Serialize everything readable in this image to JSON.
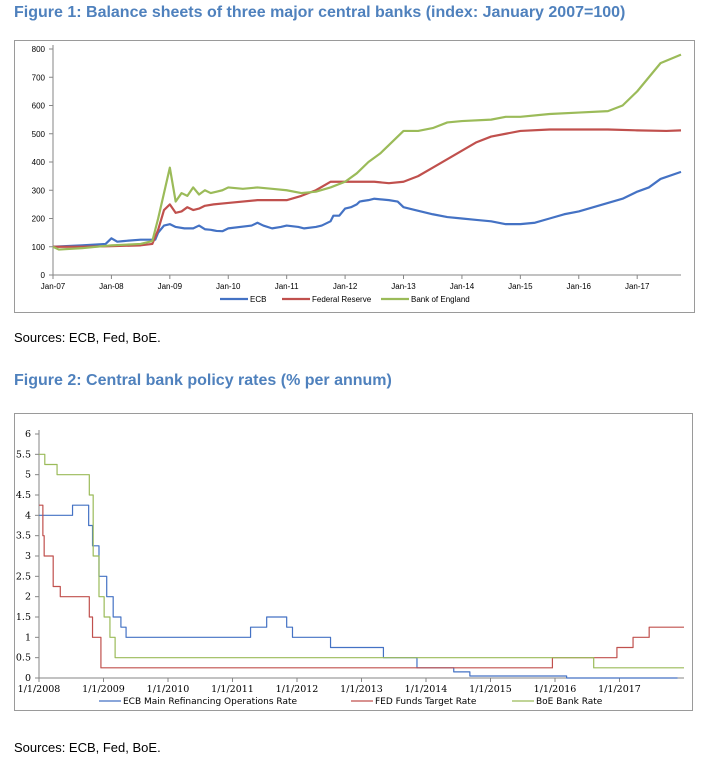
{
  "figure1": {
    "title": "Figure 1: Balance sheets of three major central banks (index: January 2007=100)",
    "sources": "Sources: ECB, Fed, BoE."
  },
  "figure2": {
    "title": "Figure 2: Central bank policy rates (% per annum)",
    "sources": "Sources: ECB, Fed, BoE."
  },
  "chart_data": [
    {
      "type": "line",
      "title": "Figure 1: Balance sheets of three major central banks (index: January 2007=100)",
      "xlabel": "",
      "ylabel": "",
      "xlim": [
        2007.0,
        2017.75
      ],
      "ylim": [
        0,
        800
      ],
      "yticks": [
        0,
        100,
        200,
        300,
        400,
        500,
        600,
        700,
        800
      ],
      "xtick_labels": [
        "Jan-07",
        "Jan-08",
        "Jan-09",
        "Jan-10",
        "Jan-11",
        "Jan-12",
        "Jan-13",
        "Jan-14",
        "Jan-15",
        "Jan-16",
        "Jan-17"
      ],
      "grid": false,
      "legend_position": "bottom",
      "series": [
        {
          "name": "ECB",
          "color": "#4472c4",
          "x": [
            2007.0,
            2007.5,
            2007.9,
            2008.0,
            2008.1,
            2008.2,
            2008.5,
            2008.75,
            2008.8,
            2008.9,
            2009.0,
            2009.1,
            2009.25,
            2009.4,
            2009.5,
            2009.6,
            2009.7,
            2009.75,
            2009.8,
            2009.9,
            2010.0,
            2010.4,
            2010.5,
            2010.6,
            2010.75,
            2010.9,
            2011.0,
            2011.2,
            2011.3,
            2011.5,
            2011.6,
            2011.75,
            2011.8,
            2011.9,
            2012.0,
            2012.1,
            2012.2,
            2012.25,
            2012.3,
            2012.4,
            2012.5,
            2012.75,
            2012.9,
            2013.0,
            2013.2,
            2013.5,
            2013.75,
            2014.0,
            2014.25,
            2014.5,
            2014.75,
            2015.0,
            2015.25,
            2015.5,
            2015.75,
            2016.0,
            2016.25,
            2016.5,
            2016.75,
            2017.0,
            2017.2,
            2017.4,
            2017.75
          ],
          "y": [
            100,
            105,
            110,
            130,
            118,
            120,
            125,
            125,
            150,
            175,
            180,
            170,
            165,
            165,
            175,
            162,
            160,
            158,
            156,
            155,
            165,
            175,
            185,
            175,
            165,
            170,
            175,
            170,
            165,
            170,
            175,
            190,
            210,
            210,
            235,
            240,
            250,
            260,
            262,
            265,
            270,
            265,
            260,
            240,
            230,
            215,
            205,
            200,
            195,
            190,
            180,
            180,
            185,
            200,
            215,
            225,
            240,
            255,
            270,
            295,
            310,
            340,
            365
          ]
        },
        {
          "name": "Federal Reserve",
          "color": "#c0504d",
          "x": [
            2007.0,
            2007.5,
            2008.0,
            2008.5,
            2008.7,
            2008.8,
            2008.9,
            2009.0,
            2009.1,
            2009.2,
            2009.3,
            2009.4,
            2009.5,
            2009.6,
            2009.75,
            2010.0,
            2010.5,
            2011.0,
            2011.25,
            2011.5,
            2011.75,
            2012.0,
            2012.25,
            2012.5,
            2012.75,
            2013.0,
            2013.25,
            2013.5,
            2013.75,
            2014.0,
            2014.25,
            2014.5,
            2014.75,
            2015.0,
            2015.5,
            2016.0,
            2016.5,
            2017.0,
            2017.5,
            2017.75
          ],
          "y": [
            100,
            100,
            102,
            105,
            110,
            160,
            230,
            250,
            220,
            225,
            240,
            230,
            235,
            245,
            250,
            255,
            265,
            265,
            280,
            300,
            330,
            330,
            330,
            330,
            325,
            330,
            350,
            380,
            410,
            440,
            470,
            490,
            500,
            510,
            515,
            515,
            515,
            512,
            510,
            512
          ]
        },
        {
          "name": "Bank of England",
          "color": "#9bbb59",
          "x": [
            2007.0,
            2007.1,
            2007.5,
            2008.0,
            2008.5,
            2008.7,
            2008.8,
            2008.9,
            2009.0,
            2009.1,
            2009.2,
            2009.3,
            2009.4,
            2009.5,
            2009.6,
            2009.7,
            2009.8,
            2009.9,
            2010.0,
            2010.25,
            2010.5,
            2010.75,
            2011.0,
            2011.25,
            2011.5,
            2011.75,
            2012.0,
            2012.2,
            2012.4,
            2012.6,
            2012.75,
            2012.9,
            2013.0,
            2013.25,
            2013.5,
            2013.75,
            2014.0,
            2014.5,
            2014.75,
            2015.0,
            2015.5,
            2016.0,
            2016.5,
            2016.75,
            2017.0,
            2017.2,
            2017.4,
            2017.75
          ],
          "y": [
            100,
            90,
            95,
            105,
            110,
            120,
            200,
            290,
            380,
            260,
            290,
            280,
            310,
            285,
            300,
            290,
            295,
            300,
            310,
            305,
            310,
            305,
            300,
            290,
            295,
            310,
            330,
            360,
            400,
            430,
            460,
            490,
            510,
            510,
            520,
            540,
            545,
            550,
            560,
            560,
            570,
            575,
            580,
            600,
            650,
            700,
            750,
            780
          ]
        }
      ]
    },
    {
      "type": "line",
      "title": "Figure 2: Central bank policy rates (% per annum)",
      "xlabel": "",
      "ylabel": "",
      "xlim": [
        2008.0,
        2018.0
      ],
      "ylim": [
        0,
        6
      ],
      "yticks": [
        0,
        0.5,
        1,
        1.5,
        2,
        2.5,
        3,
        3.5,
        4,
        4.5,
        5,
        5.5,
        6
      ],
      "ytick_labels": [
        "0",
        "0.5",
        "1",
        "1.5",
        "2",
        "2.5",
        "3",
        "3.5",
        "4",
        "4.5",
        "5",
        "5.5",
        "6"
      ],
      "xtick_labels": [
        "1/1/2008",
        "1/1/2009",
        "1/1/2010",
        "1/1/2011",
        "1/1/2012",
        "1/1/2013",
        "1/1/2014",
        "1/1/2015",
        "1/1/2016",
        "1/1/2017"
      ],
      "grid": false,
      "legend_position": "bottom",
      "series": [
        {
          "name": "ECB Main Refinancing Operations Rate",
          "color": "#4472c4",
          "step": true,
          "x": [
            2008.0,
            2008.52,
            2008.77,
            2008.83,
            2008.93,
            2009.0,
            2009.05,
            2009.15,
            2009.27,
            2009.35,
            2009.4,
            2011.28,
            2011.53,
            2011.84,
            2011.93,
            2012.52,
            2013.34,
            2013.86,
            2014.43,
            2014.68,
            2016.18,
            2017.9
          ],
          "y": [
            4,
            4.25,
            3.75,
            3.25,
            2.5,
            2.5,
            2,
            1.5,
            1.25,
            1,
            1,
            1.25,
            1.5,
            1.25,
            1,
            0.75,
            0.5,
            0.25,
            0.15,
            0.05,
            0,
            0
          ]
        },
        {
          "name": "FED Funds Target Rate",
          "color": "#c0504d",
          "step": true,
          "x": [
            2008.0,
            2008.06,
            2008.08,
            2008.22,
            2008.33,
            2008.78,
            2008.83,
            2008.96,
            2015.96,
            2016.96,
            2017.21,
            2017.46,
            2017.96,
            2018.0
          ],
          "y": [
            4.25,
            3.5,
            3,
            2.25,
            2,
            1.5,
            1,
            0.25,
            0.5,
            0.75,
            1,
            1.25,
            1.25,
            1.25
          ]
        },
        {
          "name": "BoE Bank Rate",
          "color": "#9bbb59",
          "step": true,
          "x": [
            2008.0,
            2008.09,
            2008.28,
            2008.78,
            2008.84,
            2008.93,
            2009.01,
            2009.1,
            2009.18,
            2016.6,
            2017.96,
            2018.0
          ],
          "y": [
            5.5,
            5.25,
            5,
            4.5,
            3,
            2,
            1.5,
            1,
            0.5,
            0.25,
            0.25,
            0.25
          ]
        }
      ]
    }
  ]
}
